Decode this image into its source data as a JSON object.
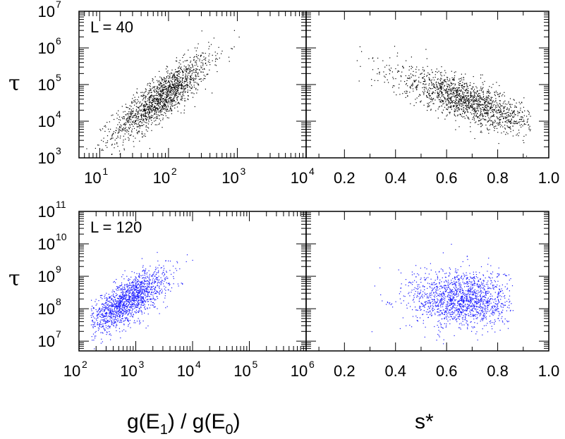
{
  "chart_data": [
    {
      "panel": "top-left",
      "type": "scatter",
      "annotation": "L = 40",
      "xscale": "log",
      "yscale": "log",
      "xlim": [
        5,
        10000
      ],
      "ylim": [
        1000,
        10000000
      ],
      "xticks": [
        {
          "base": "10",
          "exp": "1",
          "value": 10
        },
        {
          "base": "10",
          "exp": "2",
          "value": 100
        },
        {
          "base": "10",
          "exp": "3",
          "value": 1000
        },
        {
          "base": "10",
          "exp": "4",
          "value": 10000
        }
      ],
      "yticks": [
        {
          "base": "10",
          "exp": "3",
          "value": 1000
        },
        {
          "base": "10",
          "exp": "4",
          "value": 10000
        },
        {
          "base": "10",
          "exp": "5",
          "value": 100000
        },
        {
          "base": "10",
          "exp": "6",
          "value": 1000000
        },
        {
          "base": "10",
          "exp": "7",
          "value": 10000000
        }
      ],
      "ylabel": "τ",
      "color": "#000000",
      "cloud": {
        "n": 1600,
        "x_log_mean": 1.9,
        "x_log_sd": 0.35,
        "slope": 1.35,
        "intercept": 2.1,
        "scatter_sd": 0.3,
        "x_range_log": [
          0.75,
          3.8
        ]
      }
    },
    {
      "panel": "top-right",
      "type": "scatter",
      "xscale": "linear",
      "yscale": "log",
      "xlim": [
        0.05,
        1.0
      ],
      "ylim": [
        1000,
        10000000
      ],
      "xticks": [
        {
          "label": "0.2",
          "value": 0.2
        },
        {
          "label": "0.4",
          "value": 0.4
        },
        {
          "label": "0.6",
          "value": 0.6
        },
        {
          "label": "0.8",
          "value": 0.8
        },
        {
          "label": "1.0",
          "value": 1.0
        }
      ],
      "color": "#000000",
      "cloud": {
        "n": 1600,
        "x_mean": 0.68,
        "x_sd": 0.14,
        "slope": -2.4,
        "intercept": 6.2,
        "scatter_sd": 0.28,
        "x_range": [
          0.08,
          0.93
        ]
      }
    },
    {
      "panel": "bottom-left",
      "type": "scatter",
      "annotation": "L = 120",
      "xscale": "log",
      "yscale": "log",
      "xlim": [
        100,
        1000000
      ],
      "ylim": [
        5000000,
        100000000000
      ],
      "xticks": [
        {
          "base": "10",
          "exp": "2",
          "value": 100
        },
        {
          "base": "10",
          "exp": "3",
          "value": 1000
        },
        {
          "base": "10",
          "exp": "4",
          "value": 10000
        },
        {
          "base": "10",
          "exp": "5",
          "value": 100000
        },
        {
          "base": "10",
          "exp": "6",
          "value": 1000000
        }
      ],
      "yticks": [
        {
          "base": "10",
          "exp": "7",
          "value": 10000000
        },
        {
          "base": "10",
          "exp": "8",
          "value": 100000000
        },
        {
          "base": "10",
          "exp": "9",
          "value": 1000000000
        },
        {
          "base": "10",
          "exp": "10",
          "value": 10000000000
        },
        {
          "base": "10",
          "exp": "11",
          "value": 100000000000
        }
      ],
      "xlabel": {
        "main": "g(E",
        "sub1": "1",
        "mid": ") / g(E",
        "sub2": "0",
        "end": ")"
      },
      "ylabel": "τ",
      "color": "#1a1aff",
      "cloud": {
        "n": 1600,
        "x_log_mean": 2.85,
        "x_log_sd": 0.35,
        "slope": 1.0,
        "intercept": 5.4,
        "scatter_sd": 0.32,
        "x_range_log": [
          2.2,
          5.8
        ]
      }
    },
    {
      "panel": "bottom-right",
      "type": "scatter",
      "xscale": "linear",
      "yscale": "log",
      "xlim": [
        0.05,
        1.0
      ],
      "ylim": [
        5000000,
        100000000000
      ],
      "xticks": [
        {
          "label": "0.2",
          "value": 0.2
        },
        {
          "label": "0.4",
          "value": 0.4
        },
        {
          "label": "0.6",
          "value": 0.6
        },
        {
          "label": "0.8",
          "value": 0.8
        },
        {
          "label": "1.0",
          "value": 1.0
        }
      ],
      "xlabel": "s*",
      "color": "#1a1aff",
      "cloud": {
        "n": 1600,
        "x_mean": 0.66,
        "x_sd": 0.1,
        "slope": 0.0,
        "intercept": 8.3,
        "scatter_sd": 0.45,
        "x_range": [
          0.2,
          0.86
        ]
      }
    }
  ]
}
